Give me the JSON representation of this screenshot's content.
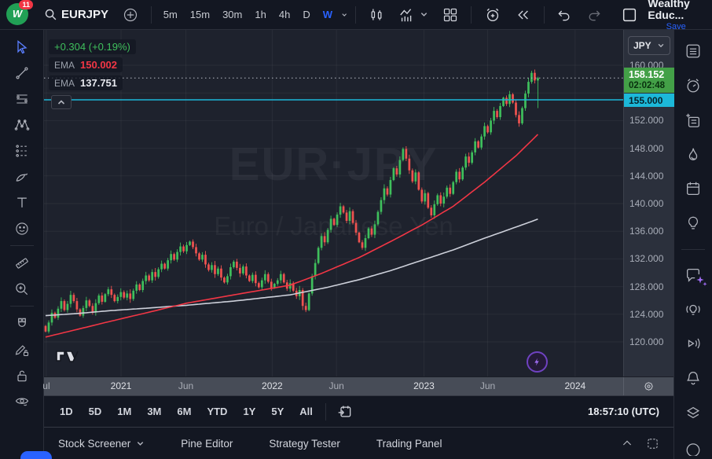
{
  "header": {
    "badge": "11",
    "symbol": "EURJPY",
    "intervals": [
      "5m",
      "15m",
      "30m",
      "1h",
      "4h",
      "D",
      "W"
    ],
    "account": "Wealthy Educ...",
    "save": "Save",
    "icons": [
      "logo",
      "search-icon",
      "plus-circle-icon",
      "chevron-down-icon",
      "candles-icon",
      "indicators-icon",
      "layout-grid-icon",
      "alert-plus-icon",
      "replay-icon",
      "undo-icon",
      "redo-icon",
      "save-layout-box"
    ]
  },
  "left_toolbar": {
    "tools": [
      "cursor",
      "trend-line",
      "fib-retracement",
      "xabcd-pattern",
      "forecast",
      "brush",
      "text",
      "emoji",
      "ruler",
      "zoom-in",
      "magnet",
      "drawing-lock",
      "lock-all",
      "hide-all"
    ]
  },
  "right_sidebar": {
    "icons": [
      "watchlist",
      "alerts-clock",
      "object-tree",
      "hotlists-flame",
      "calendar",
      "ideas-bulb",
      "chat-sparkles",
      "minds-bulb-waves",
      "streams-play",
      "notifications-bell",
      "dom-layers",
      "more-circle"
    ]
  },
  "chart": {
    "legend": {
      "change": "+0.304 (+0.19%)",
      "ema1_label": "EMA",
      "ema1_value": "150.002",
      "ema2_label": "EMA",
      "ema2_value": "137.751"
    },
    "watermark": {
      "line1": "EUR·JPY",
      "line2": "Euro / Japanese Yen"
    },
    "price_axis": {
      "currency": "JPY",
      "last_price": "158.152",
      "countdown": "02:02:48",
      "alert_price": "155.000"
    }
  },
  "chart_data": {
    "type": "candlestick",
    "symbol": "EURJPY",
    "timeframe": "W",
    "ylim": [
      118.5,
      160.0
    ],
    "first_open": 122.3,
    "closes": [
      121.5,
      122.8,
      124.2,
      123.5,
      124.8,
      125.9,
      124.6,
      125.5,
      126.8,
      125.9,
      124.7,
      123.8,
      124.9,
      126.0,
      125.2,
      124.3,
      125.6,
      126.7,
      125.8,
      126.9,
      127.6,
      126.8,
      125.9,
      126.5,
      127.2,
      126.4,
      127.0,
      126.2,
      127.4,
      128.3,
      127.5,
      128.8,
      129.6,
      128.9,
      130.1,
      129.4,
      130.5,
      131.3,
      130.6,
      131.8,
      132.7,
      131.9,
      133.0,
      133.8,
      133.1,
      134.0,
      134.5,
      133.7,
      132.8,
      131.9,
      132.6,
      131.2,
      130.4,
      131.1,
      129.8,
      130.6,
      129.3,
      128.6,
      129.5,
      130.8,
      131.6,
      130.7,
      129.9,
      130.9,
      129.6,
      128.8,
      129.7,
      128.5,
      127.9,
      128.9,
      129.8,
      128.7,
      127.8,
      128.4,
      128.9,
      129.8,
      128.6,
      127.7,
      128.5,
      127.4,
      126.6,
      127.5,
      125.2,
      124.6,
      127.0,
      129.5,
      131.4,
      133.6,
      135.3,
      134.4,
      136.2,
      137.8,
      136.9,
      138.4,
      139.6,
      138.7,
      137.5,
      138.9,
      137.2,
      135.8,
      134.4,
      133.6,
      135.0,
      136.4,
      135.5,
      137.0,
      138.8,
      140.5,
      142.2,
      141.3,
      143.4,
      145.1,
      144.2,
      146.3,
      147.9,
      146.5,
      144.8,
      143.2,
      144.5,
      142.0,
      140.3,
      141.5,
      139.4,
      138.3,
      139.9,
      141.2,
      140.0,
      141.0,
      142.3,
      141.4,
      143.1,
      144.6,
      143.5,
      145.2,
      146.8,
      145.9,
      147.4,
      149.0,
      148.1,
      149.7,
      151.2,
      150.3,
      152.0,
      153.4,
      152.5,
      154.1,
      155.3,
      154.4,
      155.8,
      154.6,
      152.8,
      151.6,
      153.8,
      155.9,
      157.6,
      158.9,
      157.8,
      158.152
    ],
    "wick_overrides": [
      {
        "i": 82,
        "low": 124.6
      },
      {
        "i": 83,
        "low": 124.3
      },
      {
        "i": 157,
        "low": 153.8
      }
    ],
    "last_close": 158.152,
    "alert_level": 155.0,
    "ema_red_waypoints": [
      [
        0,
        120.7
      ],
      [
        10,
        121.8
      ],
      [
        20,
        122.9
      ],
      [
        33,
        124.3
      ],
      [
        45,
        125.6
      ],
      [
        60,
        126.8
      ],
      [
        78,
        128.2
      ],
      [
        88,
        129.9
      ],
      [
        100,
        132.2
      ],
      [
        110,
        134.5
      ],
      [
        120,
        136.9
      ],
      [
        130,
        139.6
      ],
      [
        140,
        143.1
      ],
      [
        150,
        146.9
      ],
      [
        157,
        150.0
      ]
    ],
    "ema_white_waypoints": [
      [
        0,
        123.8
      ],
      [
        10,
        124.1
      ],
      [
        20,
        124.5
      ],
      [
        33,
        124.9
      ],
      [
        45,
        125.3
      ],
      [
        60,
        125.9
      ],
      [
        78,
        126.8
      ],
      [
        90,
        127.9
      ],
      [
        100,
        129.0
      ],
      [
        110,
        130.3
      ],
      [
        120,
        131.8
      ],
      [
        130,
        133.3
      ],
      [
        140,
        135.0
      ],
      [
        150,
        136.6
      ],
      [
        157,
        137.75
      ]
    ],
    "price_ticks": [
      {
        "label": "160.000",
        "value": 160.0
      },
      {
        "label": "152.000",
        "value": 152.0
      },
      {
        "label": "148.000",
        "value": 148.0
      },
      {
        "label": "144.000",
        "value": 144.0
      },
      {
        "label": "140.000",
        "value": 140.0
      },
      {
        "label": "136.000",
        "value": 136.0
      },
      {
        "label": "132.000",
        "value": 132.0
      },
      {
        "label": "128.000",
        "value": 128.0
      },
      {
        "label": "124.000",
        "value": 124.0
      },
      {
        "label": "120.000",
        "value": 120.0
      }
    ],
    "grid_prices": [
      120,
      124,
      128,
      132,
      136,
      140,
      144,
      148,
      152,
      156,
      160
    ],
    "time_labels": [
      {
        "t": "ul",
        "f": 0.004,
        "strong": false
      },
      {
        "t": "2021",
        "f": 0.133,
        "strong": true
      },
      {
        "t": "Jun",
        "f": 0.245,
        "strong": false
      },
      {
        "t": "2022",
        "f": 0.394,
        "strong": true
      },
      {
        "t": "Jun",
        "f": 0.505,
        "strong": false
      },
      {
        "t": "2023",
        "f": 0.656,
        "strong": true
      },
      {
        "t": "Jun",
        "f": 0.766,
        "strong": false
      },
      {
        "t": "2024",
        "f": 0.917,
        "strong": true
      }
    ],
    "colors": {
      "up": "#3fbf5c",
      "down": "#ef5350",
      "ema_red": "#f23645",
      "ema_white": "#cdd0da",
      "alert_cyan": "#1cb8d9",
      "last_dotted": "#b8bcc6",
      "grid": "rgba(255,255,255,0.05)",
      "badge_green": "#43a047",
      "accent_blue": "#2962ff"
    }
  },
  "footer": {
    "ranges": [
      "1D",
      "5D",
      "1M",
      "3M",
      "6M",
      "YTD",
      "1Y",
      "5Y",
      "All"
    ],
    "clock": "18:57:10 (UTC)",
    "icons": [
      "go-to-date-calendar",
      "timezone-gear"
    ]
  },
  "panel": {
    "tabs": [
      "Stock Screener",
      "Pine Editor",
      "Strategy Tester",
      "Trading Panel"
    ],
    "icons": [
      "collapse-chevron",
      "maximize-square"
    ]
  }
}
